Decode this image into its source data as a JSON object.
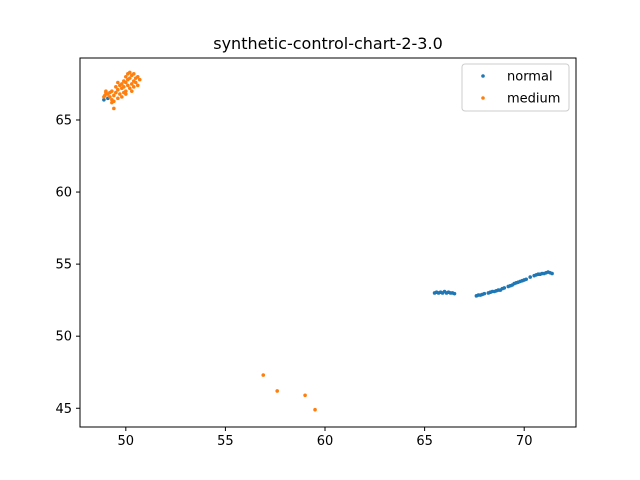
{
  "chart_data": {
    "type": "scatter",
    "title": "synthetic-control-chart-2-3.0",
    "xlabel": "",
    "ylabel": "",
    "xlim": [
      47.7,
      72.6
    ],
    "ylim": [
      43.7,
      69.3
    ],
    "xticks": [
      50,
      55,
      60,
      65,
      70
    ],
    "yticks": [
      45,
      50,
      55,
      60,
      65
    ],
    "grid": false,
    "legend_position": "top-right",
    "series": [
      {
        "name": "normal",
        "color": "#1f77b4",
        "points": [
          [
            65.5,
            53.0
          ],
          [
            65.6,
            53.05
          ],
          [
            65.7,
            53.0
          ],
          [
            65.8,
            53.05
          ],
          [
            65.9,
            53.0
          ],
          [
            66.0,
            53.1
          ],
          [
            66.1,
            53.0
          ],
          [
            66.2,
            53.05
          ],
          [
            66.3,
            53.0
          ],
          [
            66.4,
            53.0
          ],
          [
            66.5,
            52.95
          ],
          [
            67.6,
            52.8
          ],
          [
            67.7,
            52.85
          ],
          [
            67.8,
            52.85
          ],
          [
            67.9,
            52.9
          ],
          [
            68.0,
            52.95
          ],
          [
            68.2,
            53.0
          ],
          [
            68.3,
            53.05
          ],
          [
            68.4,
            53.1
          ],
          [
            68.5,
            53.1
          ],
          [
            68.6,
            53.15
          ],
          [
            68.7,
            53.2
          ],
          [
            68.8,
            53.2
          ],
          [
            68.9,
            53.3
          ],
          [
            69.0,
            53.35
          ],
          [
            69.2,
            53.45
          ],
          [
            69.3,
            53.5
          ],
          [
            69.4,
            53.55
          ],
          [
            69.5,
            53.65
          ],
          [
            69.6,
            53.7
          ],
          [
            69.7,
            53.75
          ],
          [
            69.8,
            53.8
          ],
          [
            69.9,
            53.85
          ],
          [
            70.0,
            53.9
          ],
          [
            70.1,
            53.95
          ],
          [
            70.3,
            54.1
          ],
          [
            70.5,
            54.2
          ],
          [
            70.6,
            54.25
          ],
          [
            70.7,
            54.3
          ],
          [
            70.8,
            54.3
          ],
          [
            70.9,
            54.35
          ],
          [
            71.0,
            54.35
          ],
          [
            71.1,
            54.4
          ],
          [
            71.2,
            54.45
          ],
          [
            71.3,
            54.4
          ],
          [
            71.4,
            54.35
          ],
          [
            48.9,
            66.4
          ],
          [
            49.1,
            66.5
          ]
        ]
      },
      {
        "name": "medium",
        "color": "#ff7f0e",
        "points": [
          [
            48.9,
            66.6
          ],
          [
            49.0,
            66.9
          ],
          [
            49.0,
            67.0
          ],
          [
            49.1,
            66.8
          ],
          [
            49.2,
            66.6
          ],
          [
            49.2,
            66.9
          ],
          [
            49.3,
            66.4
          ],
          [
            49.3,
            67.0
          ],
          [
            49.4,
            66.3
          ],
          [
            49.4,
            66.7
          ],
          [
            49.4,
            65.8
          ],
          [
            49.5,
            66.9
          ],
          [
            49.5,
            67.3
          ],
          [
            49.6,
            66.5
          ],
          [
            49.6,
            67.1
          ],
          [
            49.6,
            67.6
          ],
          [
            49.7,
            66.8
          ],
          [
            49.7,
            67.4
          ],
          [
            49.8,
            66.6
          ],
          [
            49.8,
            67.2
          ],
          [
            49.8,
            67.5
          ],
          [
            49.9,
            66.9
          ],
          [
            49.9,
            67.7
          ],
          [
            49.9,
            67.3
          ],
          [
            50.0,
            67.0
          ],
          [
            50.0,
            67.6
          ],
          [
            50.0,
            68.0
          ],
          [
            50.1,
            67.4
          ],
          [
            50.1,
            68.2
          ],
          [
            50.1,
            67.8
          ],
          [
            50.2,
            67.2
          ],
          [
            50.2,
            67.9
          ],
          [
            50.2,
            68.3
          ],
          [
            50.3,
            67.5
          ],
          [
            50.3,
            68.1
          ],
          [
            50.3,
            67.0
          ],
          [
            50.4,
            67.7
          ],
          [
            50.4,
            68.2
          ],
          [
            50.4,
            67.3
          ],
          [
            50.5,
            67.9
          ],
          [
            50.5,
            67.6
          ],
          [
            50.6,
            68.0
          ],
          [
            50.6,
            67.4
          ],
          [
            50.7,
            67.8
          ],
          [
            50.0,
            66.8
          ],
          [
            49.3,
            66.2
          ],
          [
            48.95,
            66.7
          ],
          [
            56.9,
            47.3
          ],
          [
            57.6,
            46.2
          ],
          [
            59.0,
            45.9
          ],
          [
            59.5,
            44.9
          ]
        ]
      }
    ]
  }
}
